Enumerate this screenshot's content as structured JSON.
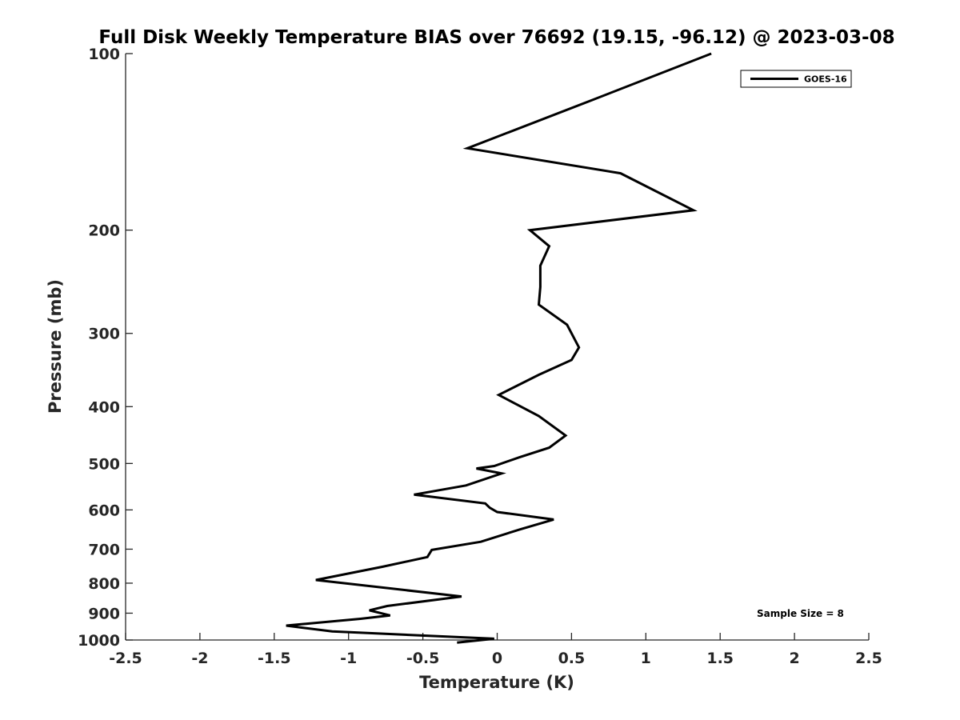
{
  "chart_data": {
    "type": "line",
    "title": "Full Disk Weekly Temperature BIAS over 76692 (19.15, -96.12) @ 2023-03-08",
    "xlabel": "Temperature (K)",
    "ylabel": "Pressure (mb)",
    "xlim": [
      -2.5,
      2.5
    ],
    "ylim": [
      100,
      1000
    ],
    "y_scale": "log",
    "y_reversed": true,
    "grid": false,
    "legend_position": "top-right",
    "x_ticks": [
      "-2.5",
      "-2",
      "-1.5",
      "-1",
      "-0.5",
      "0",
      "0.5",
      "1",
      "1.5",
      "2",
      "2.5"
    ],
    "x_tick_values": [
      -2.5,
      -2,
      -1.5,
      -1,
      -0.5,
      0,
      0.5,
      1,
      1.5,
      2,
      2.5
    ],
    "y_ticks": [
      "100",
      "200",
      "300",
      "400",
      "500",
      "600",
      "700",
      "800",
      "900",
      "1000"
    ],
    "y_tick_values": [
      100,
      200,
      300,
      400,
      500,
      600,
      700,
      800,
      900,
      1000
    ],
    "series": [
      {
        "name": "GOES-16",
        "color": "#000000",
        "x": [
          1.44,
          0.64,
          -0.2,
          0.83,
          1.32,
          0.22,
          0.35,
          0.29,
          0.29,
          0.28,
          0.47,
          0.55,
          0.5,
          0.28,
          0.01,
          0.28,
          0.46,
          0.35,
          0.15,
          -0.02,
          -0.14,
          0.03,
          -0.21,
          -0.56,
          -0.08,
          -0.05,
          0.0,
          0.38,
          0.15,
          -0.11,
          -0.44,
          -0.47,
          -0.77,
          -1.22,
          -0.24,
          -0.74,
          -0.86,
          -0.72,
          -0.92,
          -1.42,
          -1.11,
          -0.02,
          -0.27
        ],
        "y": [
          100,
          120,
          145,
          160,
          185,
          200,
          213,
          230,
          250,
          268,
          290,
          317,
          333,
          353,
          382,
          415,
          448,
          470,
          488,
          505,
          510,
          520,
          545,
          565,
          585,
          595,
          605,
          623,
          648,
          680,
          702,
          722,
          750,
          790,
          843,
          875,
          890,
          908,
          920,
          945,
          967,
          995,
          1010
        ]
      }
    ],
    "legend": [
      "GOES-16"
    ],
    "annotations": [
      "Sample Size = 8"
    ]
  }
}
